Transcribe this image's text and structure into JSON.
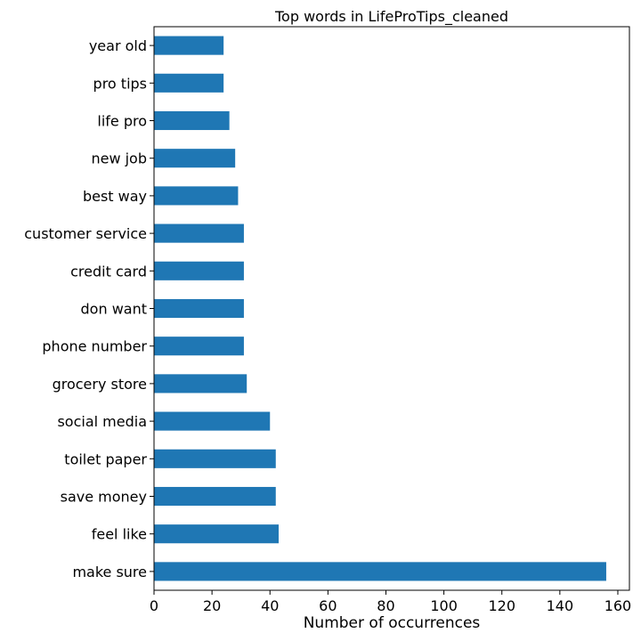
{
  "chart_data": {
    "type": "bar",
    "orientation": "horizontal",
    "title": "Top words in LifeProTips_cleaned",
    "xlabel": "Number of occurrences",
    "ylabel": "",
    "categories": [
      "make sure",
      "feel like",
      "save money",
      "toilet paper",
      "social media",
      "grocery store",
      "phone number",
      "don want",
      "credit card",
      "customer service",
      "best way",
      "new job",
      "life pro",
      "pro tips",
      "year old"
    ],
    "values": [
      156,
      43,
      42,
      42,
      40,
      32,
      31,
      31,
      31,
      31,
      29,
      28,
      26,
      24,
      24
    ],
    "xticks": [
      0,
      20,
      40,
      60,
      80,
      100,
      120,
      140,
      160
    ],
    "xlim": [
      0,
      164
    ],
    "bar_color": "#1f77b4",
    "grid": false,
    "legend": "none"
  }
}
